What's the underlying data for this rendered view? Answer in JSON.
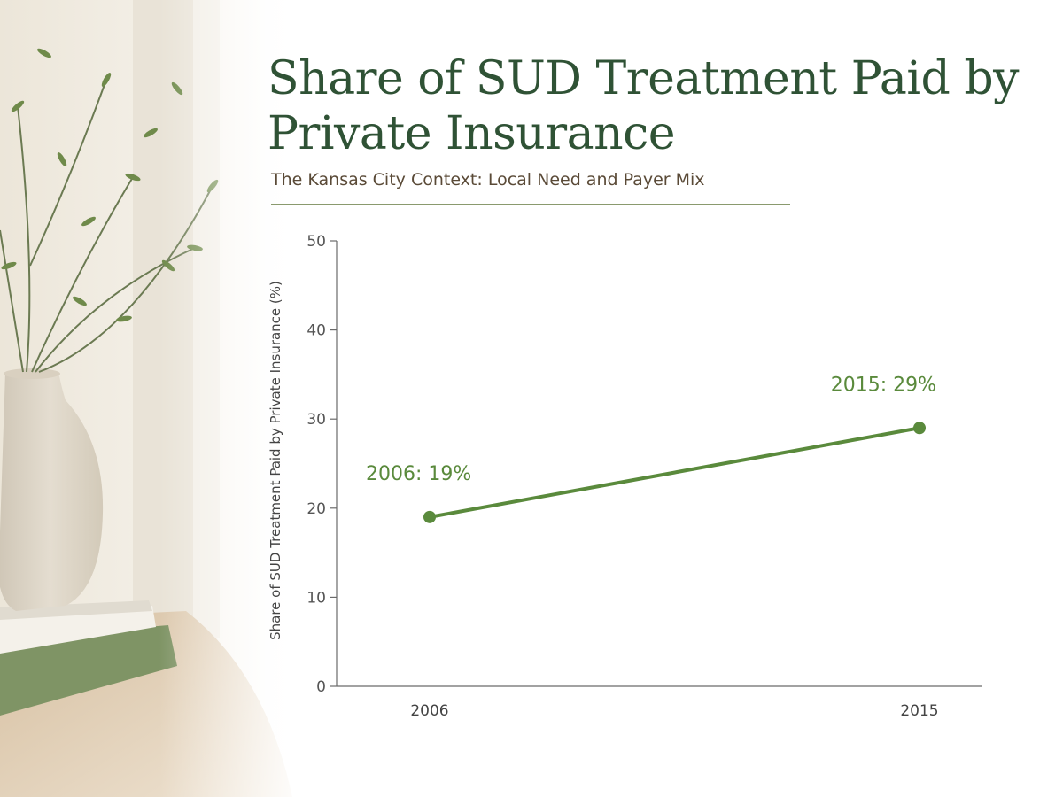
{
  "header": {
    "title": "Share of SUD Treatment Paid by Private Insurance",
    "subtitle": "The Kansas City Context: Local Need and Payer Mix"
  },
  "colors": {
    "title": "#2f5235",
    "subtitle": "#5a4a37",
    "series": "#5a8a3c",
    "axis": "#6a6a6a"
  },
  "chart_data": {
    "type": "line",
    "title": "Share of SUD Treatment Paid by Private Insurance",
    "subtitle": "The Kansas City Context: Local Need and Payer Mix",
    "xlabel": "",
    "ylabel": "Share of SUD Treatment Paid by Private Insurance (%)",
    "x": [
      2006,
      2015
    ],
    "xticks": [
      "2006",
      "2015"
    ],
    "ylim": [
      0,
      50
    ],
    "yticks": [
      0,
      10,
      20,
      30,
      40,
      50
    ],
    "grid": false,
    "series": [
      {
        "values": [
          19,
          29
        ],
        "labels": [
          "2006: 19%",
          "2015: 29%"
        ]
      }
    ]
  }
}
